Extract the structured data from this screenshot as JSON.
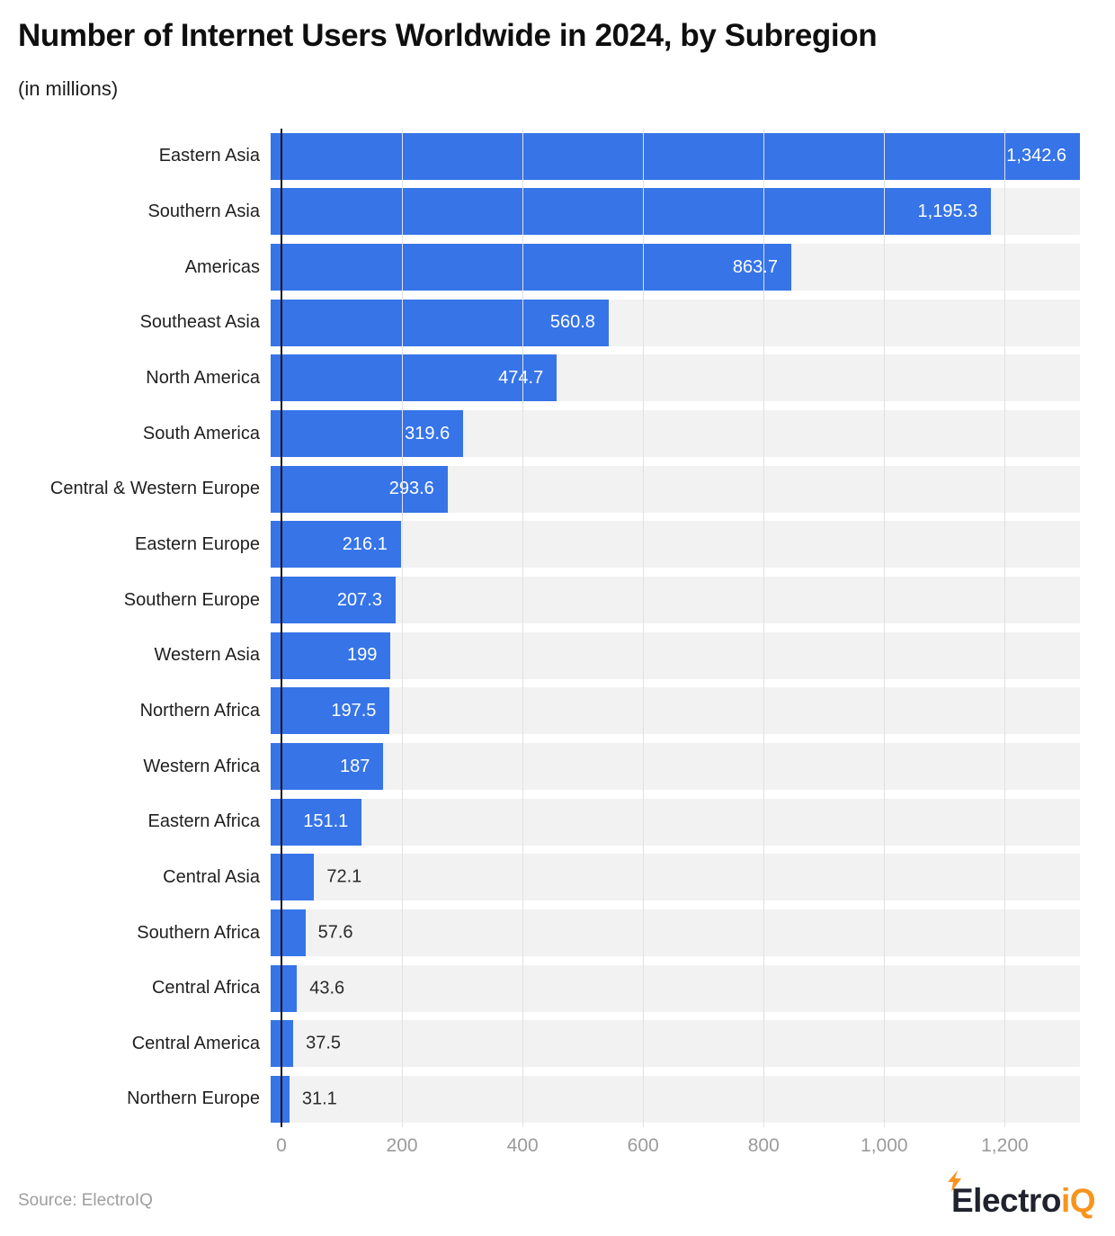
{
  "header": {
    "title": "Number of Internet Users Worldwide in 2024, by Subregion",
    "subtitle": "(in millions)"
  },
  "footer": {
    "source": "Source: ElectroIQ",
    "logo": {
      "text_dark": "Electro",
      "text_accent": "iQ"
    }
  },
  "colors": {
    "bar": "#3674e8",
    "track": "#f2f2f2",
    "grid": "#e1e1e1",
    "axis": "#161616",
    "tick_label": "#9b9b9b",
    "category_label": "#1f1f1f",
    "value_inside": "#ffffff",
    "value_outside": "#2a2a2a",
    "logo_dark": "#20232e",
    "logo_accent": "#f7941e"
  },
  "chart_data": {
    "type": "bar",
    "orientation": "horizontal",
    "title": "Number of Internet Users Worldwide in 2024, by Subregion",
    "subtitle": "(in millions)",
    "categories": [
      "Eastern Asia",
      "Southern Asia",
      "Americas",
      "Southeast Asia",
      "North America",
      "South America",
      "Central & Western Europe",
      "Eastern Europe",
      "Southern Europe",
      "Western Asia",
      "Northern Africa",
      "Western Africa",
      "Eastern Africa",
      "Central Asia",
      "Southern Africa",
      "Central Africa",
      "Central America",
      "Northern Europe"
    ],
    "values": [
      1342.6,
      1195.3,
      863.7,
      560.8,
      474.7,
      319.6,
      293.6,
      216.1,
      207.3,
      199,
      197.5,
      187,
      151.1,
      72.1,
      57.6,
      43.6,
      37.5,
      31.1
    ],
    "value_labels": [
      "1,342.6",
      "1,195.3",
      "863.7",
      "560.8",
      "474.7",
      "319.6",
      "293.6",
      "216.1",
      "207.3",
      "199",
      "197.5",
      "187",
      "151.1",
      "72.1",
      "57.6",
      "43.6",
      "37.5",
      "31.1"
    ],
    "xlabel": "",
    "ylabel": "",
    "xlim": [
      0,
      1342.6
    ],
    "x_ticks": [
      0,
      200,
      400,
      600,
      800,
      1000,
      1200
    ],
    "x_tick_labels": [
      "0",
      "200",
      "400",
      "600",
      "800",
      "1,000",
      "1,200"
    ],
    "grid": true,
    "legend": false
  }
}
